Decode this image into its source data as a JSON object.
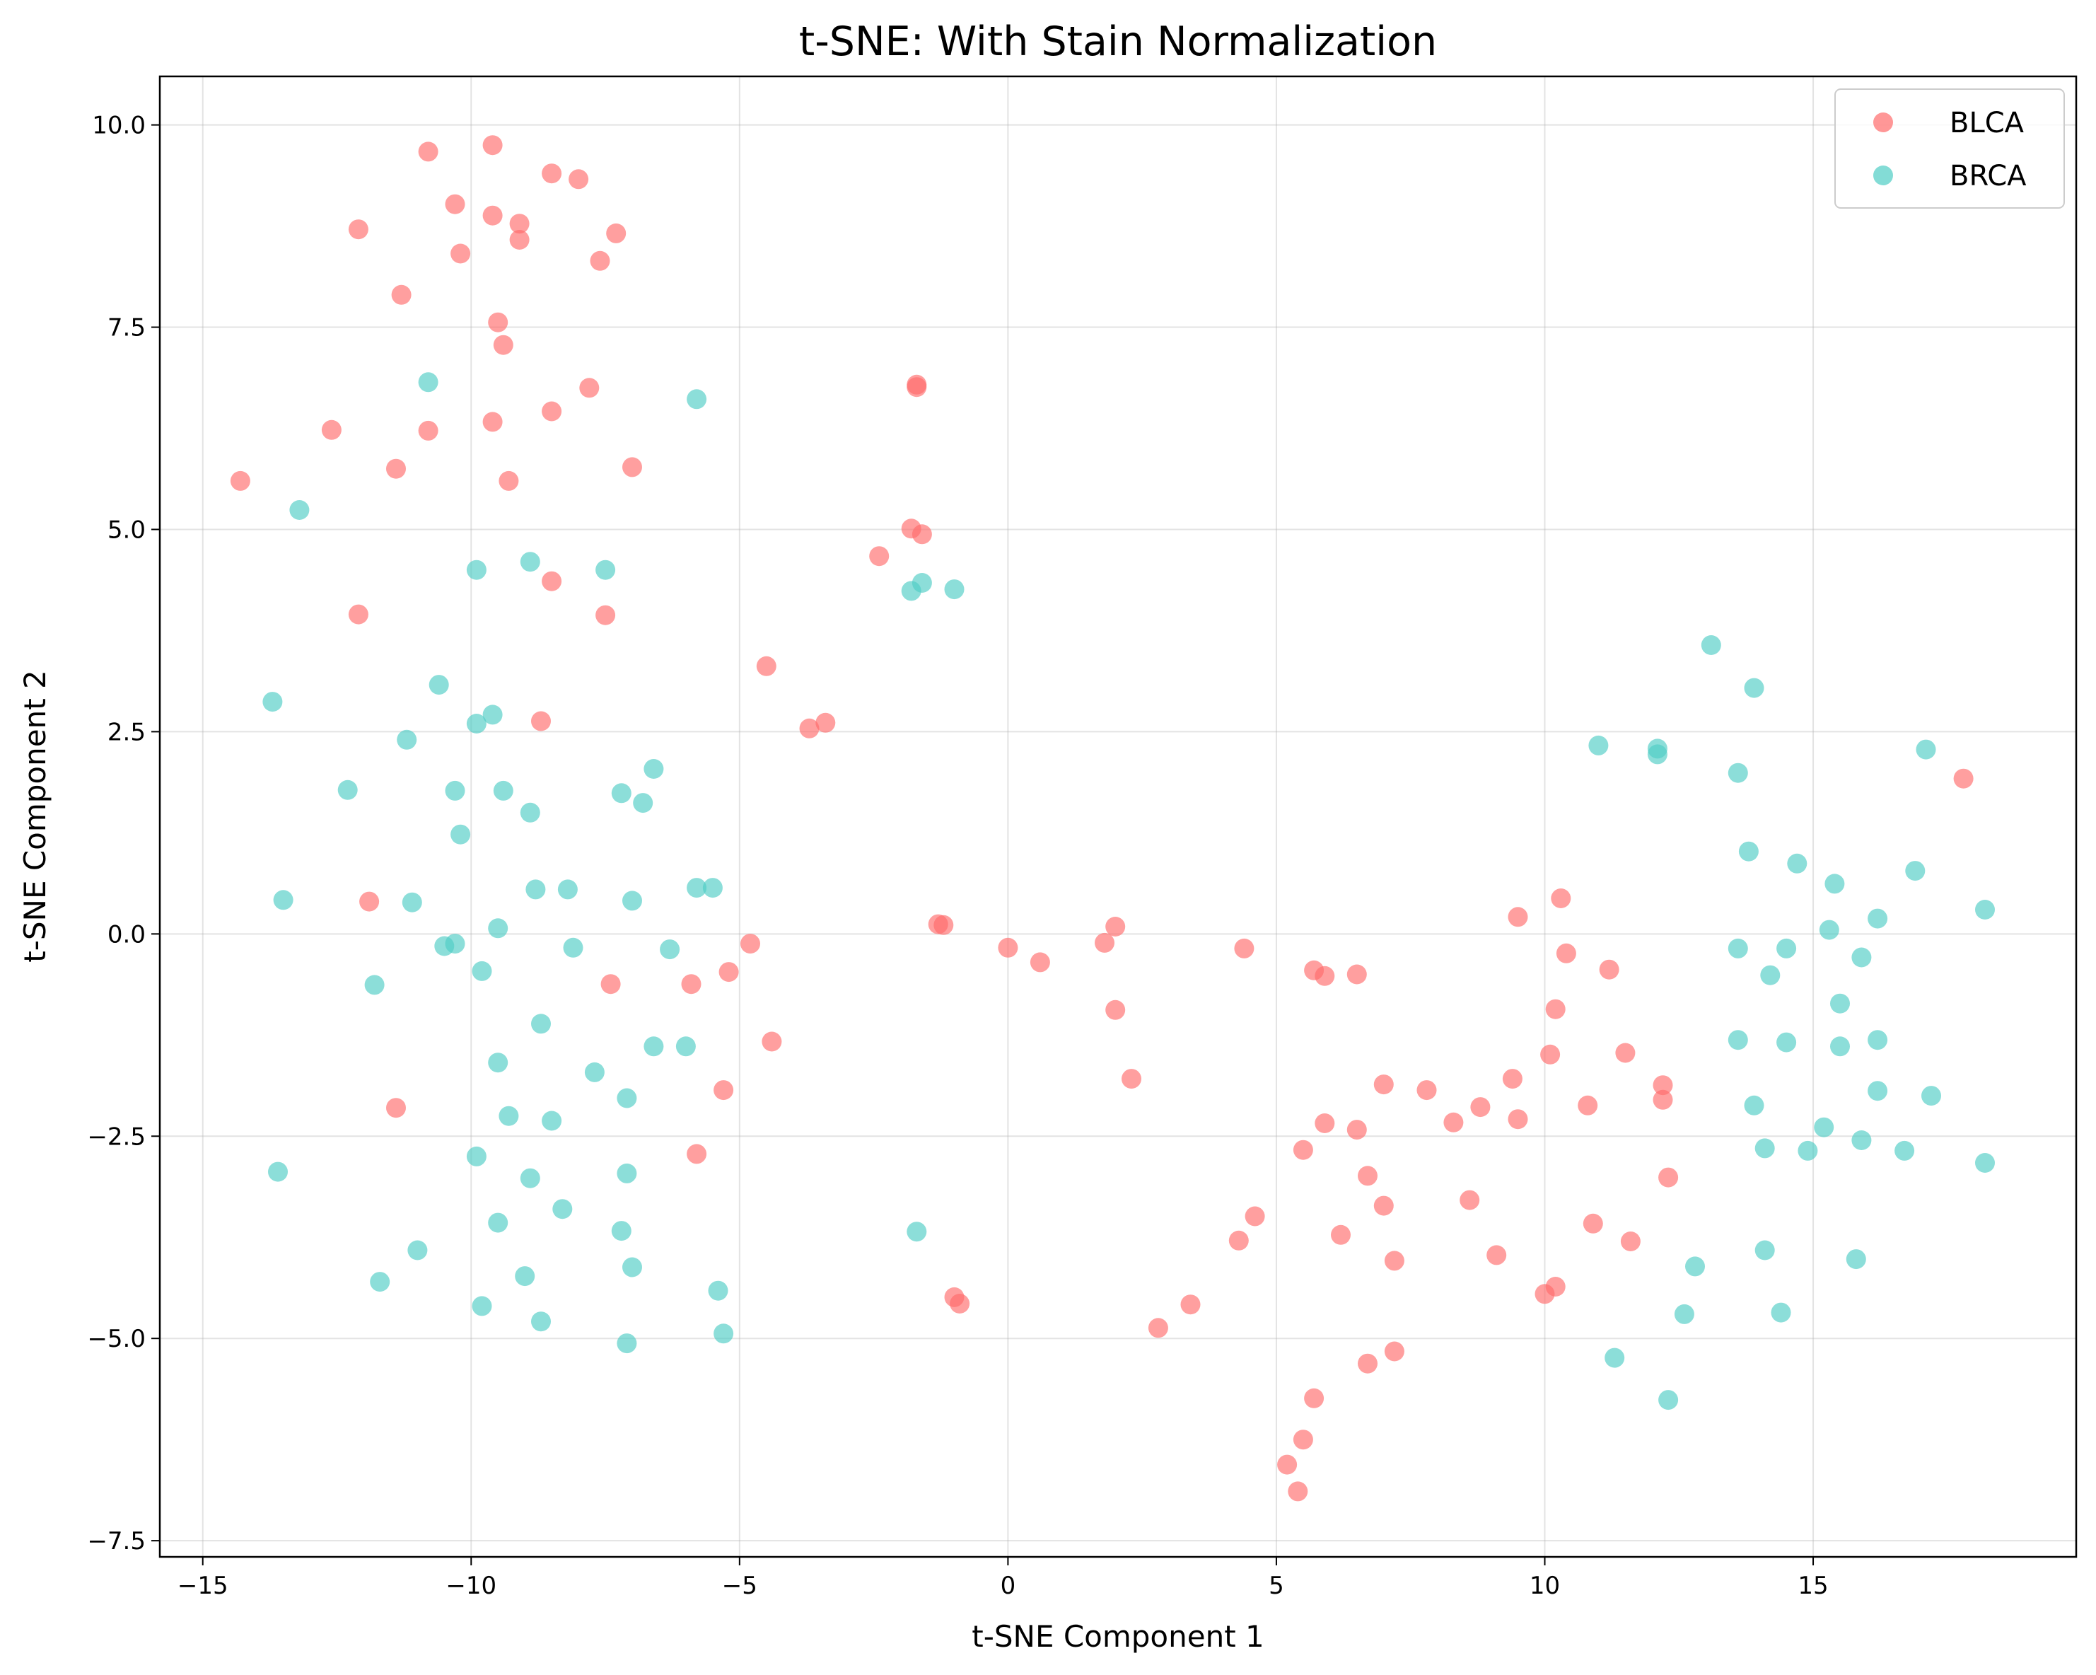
{
  "chart_data": {
    "type": "scatter",
    "title": "t-SNE: With Stain Normalization",
    "xlabel": "t-SNE Component 1",
    "ylabel": "t-SNE Component 2",
    "xlim": [
      -15.8,
      19.9
    ],
    "ylim": [
      -7.7,
      10.6
    ],
    "xticks": [
      -15,
      -10,
      -5,
      0,
      5,
      10,
      15
    ],
    "xtick_labels": [
      "−15",
      "−10",
      "−5",
      "0",
      "5",
      "10",
      "15"
    ],
    "yticks": [
      -7.5,
      -5.0,
      -2.5,
      0.0,
      2.5,
      5.0,
      7.5,
      10.0
    ],
    "ytick_labels": [
      "−7.5",
      "−5.0",
      "−2.5",
      "0.0",
      "2.5",
      "5.0",
      "7.5",
      "10.0"
    ],
    "grid": true,
    "legend_position": "top-right",
    "series": [
      {
        "name": "BLCA",
        "color": "#FF6B6B",
        "points": [
          [
            -10.8,
            9.67
          ],
          [
            -9.6,
            9.75
          ],
          [
            -8.5,
            9.4
          ],
          [
            -8.0,
            9.33
          ],
          [
            -10.3,
            9.02
          ],
          [
            -9.6,
            8.88
          ],
          [
            -9.1,
            8.78
          ],
          [
            -12.1,
            8.71
          ],
          [
            -7.3,
            8.66
          ],
          [
            -9.1,
            8.58
          ],
          [
            -10.2,
            8.41
          ],
          [
            -7.6,
            8.32
          ],
          [
            -11.3,
            7.9
          ],
          [
            -9.5,
            7.56
          ],
          [
            -9.4,
            7.28
          ],
          [
            -7.8,
            6.75
          ],
          [
            -8.5,
            6.46
          ],
          [
            -12.6,
            6.23
          ],
          [
            -9.6,
            6.33
          ],
          [
            -10.8,
            6.22
          ],
          [
            -11.4,
            5.75
          ],
          [
            -7.0,
            5.77
          ],
          [
            -9.3,
            5.6
          ],
          [
            -14.3,
            5.6
          ],
          [
            -8.5,
            4.36
          ],
          [
            -7.5,
            3.94
          ],
          [
            -12.1,
            3.95
          ],
          [
            -8.7,
            2.63
          ],
          [
            -11.9,
            0.4
          ],
          [
            -7.4,
            -0.62
          ],
          [
            -5.9,
            -0.62
          ],
          [
            -5.2,
            -0.47
          ],
          [
            -4.8,
            -0.12
          ],
          [
            -4.4,
            -1.33
          ],
          [
            -5.3,
            -1.93
          ],
          [
            -11.4,
            -2.15
          ],
          [
            -5.8,
            -2.72
          ],
          [
            -1.7,
            6.79
          ],
          [
            -1.7,
            6.76
          ],
          [
            -1.8,
            5.01
          ],
          [
            -1.6,
            4.94
          ],
          [
            -2.4,
            4.67
          ],
          [
            -4.5,
            3.31
          ],
          [
            -3.4,
            2.61
          ],
          [
            -3.7,
            2.54
          ],
          [
            -1.3,
            0.12
          ],
          [
            -1.2,
            0.11
          ],
          [
            0.0,
            -0.17
          ],
          [
            0.6,
            -0.35
          ],
          [
            1.8,
            -0.11
          ],
          [
            2.0,
            0.09
          ],
          [
            2.0,
            -0.94
          ],
          [
            2.3,
            -1.79
          ],
          [
            -1.0,
            -4.49
          ],
          [
            -0.9,
            -4.57
          ],
          [
            2.8,
            -4.87
          ],
          [
            3.4,
            -4.58
          ],
          [
            4.3,
            -3.79
          ],
          [
            4.6,
            -3.49
          ],
          [
            4.4,
            -0.18
          ],
          [
            5.7,
            -0.45
          ],
          [
            5.9,
            -0.52
          ],
          [
            6.5,
            -0.5
          ],
          [
            5.9,
            -2.34
          ],
          [
            5.5,
            -2.67
          ],
          [
            6.5,
            -2.42
          ],
          [
            6.2,
            -3.72
          ],
          [
            6.7,
            -2.99
          ],
          [
            7.0,
            -1.86
          ],
          [
            7.0,
            -3.36
          ],
          [
            7.2,
            -4.04
          ],
          [
            6.7,
            -5.31
          ],
          [
            7.2,
            -5.16
          ],
          [
            5.7,
            -5.74
          ],
          [
            5.5,
            -6.25
          ],
          [
            5.2,
            -6.56
          ],
          [
            5.4,
            -6.89
          ],
          [
            7.8,
            -1.93
          ],
          [
            8.3,
            -2.33
          ],
          [
            8.8,
            -2.14
          ],
          [
            8.6,
            -3.29
          ],
          [
            9.1,
            -3.97
          ],
          [
            9.4,
            -1.79
          ],
          [
            9.5,
            -2.29
          ],
          [
            9.5,
            0.21
          ],
          [
            10.0,
            -4.45
          ],
          [
            10.2,
            -4.36
          ],
          [
            10.1,
            -1.49
          ],
          [
            10.2,
            -0.93
          ],
          [
            10.4,
            -0.24
          ],
          [
            10.3,
            0.44
          ],
          [
            10.8,
            -2.12
          ],
          [
            10.9,
            -3.58
          ],
          [
            11.2,
            -0.44
          ],
          [
            11.5,
            -1.47
          ],
          [
            11.6,
            -3.8
          ],
          [
            12.2,
            -1.87
          ],
          [
            12.2,
            -2.05
          ],
          [
            12.3,
            -3.01
          ],
          [
            17.8,
            1.92
          ]
        ]
      },
      {
        "name": "BRCA",
        "color": "#4ECDC4",
        "points": [
          [
            -10.8,
            6.82
          ],
          [
            -5.8,
            6.61
          ],
          [
            -13.2,
            5.24
          ],
          [
            -9.9,
            4.5
          ],
          [
            -8.9,
            4.6
          ],
          [
            -7.5,
            4.5
          ],
          [
            -13.7,
            2.87
          ],
          [
            -10.6,
            3.08
          ],
          [
            -9.9,
            2.6
          ],
          [
            -9.6,
            2.71
          ],
          [
            -11.2,
            2.4
          ],
          [
            -12.3,
            1.78
          ],
          [
            -10.3,
            1.77
          ],
          [
            -9.4,
            1.77
          ],
          [
            -8.9,
            1.5
          ],
          [
            -10.2,
            1.23
          ],
          [
            -7.2,
            1.74
          ],
          [
            -6.6,
            2.04
          ],
          [
            -6.8,
            1.62
          ],
          [
            -13.5,
            0.42
          ],
          [
            -11.1,
            0.39
          ],
          [
            -8.8,
            0.55
          ],
          [
            -8.2,
            0.55
          ],
          [
            -7.0,
            0.41
          ],
          [
            -5.8,
            0.57
          ],
          [
            -5.5,
            0.57
          ],
          [
            -9.5,
            0.07
          ],
          [
            -10.5,
            -0.15
          ],
          [
            -10.3,
            -0.12
          ],
          [
            -9.8,
            -0.46
          ],
          [
            -8.1,
            -0.17
          ],
          [
            -6.3,
            -0.19
          ],
          [
            -11.8,
            -0.63
          ],
          [
            -8.7,
            -1.11
          ],
          [
            -6.6,
            -1.39
          ],
          [
            -6.0,
            -1.39
          ],
          [
            -9.5,
            -1.59
          ],
          [
            -7.7,
            -1.71
          ],
          [
            -7.1,
            -2.03
          ],
          [
            -9.3,
            -2.25
          ],
          [
            -8.5,
            -2.31
          ],
          [
            -9.9,
            -2.75
          ],
          [
            -7.1,
            -2.96
          ],
          [
            -8.9,
            -3.02
          ],
          [
            -13.6,
            -2.94
          ],
          [
            -8.3,
            -3.4
          ],
          [
            -9.5,
            -3.57
          ],
          [
            -7.2,
            -3.67
          ],
          [
            -11.0,
            -3.91
          ],
          [
            -11.7,
            -4.3
          ],
          [
            -9.0,
            -4.23
          ],
          [
            -7.0,
            -4.12
          ],
          [
            -5.4,
            -4.41
          ],
          [
            -9.8,
            -4.6
          ],
          [
            -8.7,
            -4.79
          ],
          [
            -7.1,
            -5.06
          ],
          [
            -5.3,
            -4.94
          ],
          [
            -1.6,
            4.34
          ],
          [
            -1.8,
            4.24
          ],
          [
            -1.0,
            4.26
          ],
          [
            -1.7,
            -3.68
          ],
          [
            13.1,
            3.57
          ],
          [
            13.9,
            3.04
          ],
          [
            11.0,
            2.33
          ],
          [
            12.1,
            2.29
          ],
          [
            12.1,
            2.22
          ],
          [
            13.6,
            1.99
          ],
          [
            17.1,
            2.28
          ],
          [
            13.8,
            1.02
          ],
          [
            14.7,
            0.87
          ],
          [
            15.4,
            0.62
          ],
          [
            16.9,
            0.78
          ],
          [
            18.2,
            0.3
          ],
          [
            16.2,
            0.19
          ],
          [
            15.3,
            0.05
          ],
          [
            13.6,
            -0.18
          ],
          [
            14.5,
            -0.18
          ],
          [
            15.9,
            -0.29
          ],
          [
            14.2,
            -0.51
          ],
          [
            15.5,
            -0.86
          ],
          [
            13.6,
            -1.31
          ],
          [
            14.5,
            -1.34
          ],
          [
            15.5,
            -1.39
          ],
          [
            16.2,
            -1.31
          ],
          [
            16.2,
            -1.94
          ],
          [
            17.2,
            -2.0
          ],
          [
            13.9,
            -2.12
          ],
          [
            15.2,
            -2.39
          ],
          [
            15.9,
            -2.55
          ],
          [
            14.1,
            -2.65
          ],
          [
            14.9,
            -2.68
          ],
          [
            16.7,
            -2.68
          ],
          [
            18.2,
            -2.83
          ],
          [
            12.8,
            -4.11
          ],
          [
            14.1,
            -3.91
          ],
          [
            15.8,
            -4.02
          ],
          [
            12.6,
            -4.7
          ],
          [
            14.4,
            -4.68
          ],
          [
            11.3,
            -5.24
          ],
          [
            12.3,
            -5.76
          ]
        ]
      }
    ]
  }
}
